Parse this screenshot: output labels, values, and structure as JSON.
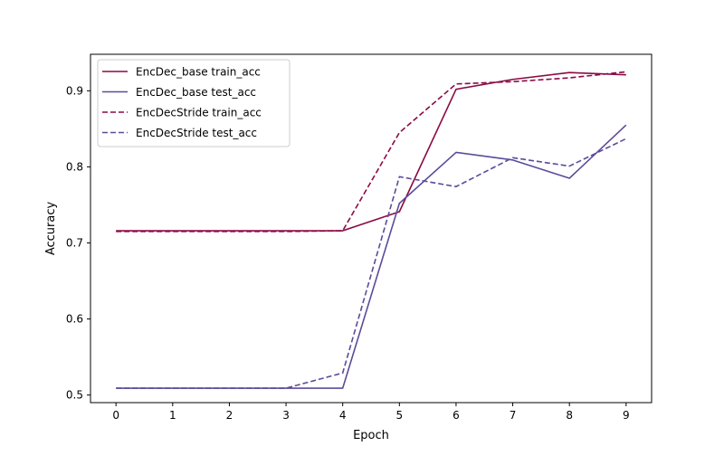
{
  "chart_data": {
    "type": "line",
    "title": "",
    "xlabel": "Epoch",
    "ylabel": "Accuracy",
    "x": [
      0,
      1,
      2,
      3,
      4,
      5,
      6,
      7,
      8,
      9
    ],
    "xticks": [
      "0",
      "1",
      "2",
      "3",
      "4",
      "5",
      "6",
      "7",
      "8",
      "9"
    ],
    "yticks": [
      "0.5",
      "0.6",
      "0.7",
      "0.8",
      "0.9"
    ],
    "ytick_values": [
      0.5,
      0.6,
      0.7,
      0.8,
      0.9
    ],
    "xlim": [
      -0.45,
      9.45
    ],
    "ylim": [
      0.49,
      0.948
    ],
    "grid": false,
    "legend_position": "top-left",
    "series": [
      {
        "name": "EncDec_base train_acc",
        "color": "#8b0a45",
        "style": "solid",
        "values": [
          0.716,
          0.716,
          0.716,
          0.716,
          0.716,
          0.741,
          0.902,
          0.915,
          0.924,
          0.921
        ]
      },
      {
        "name": "EncDec_base test_acc",
        "color": "#5c4b9a",
        "style": "solid",
        "values": [
          0.509,
          0.509,
          0.509,
          0.509,
          0.509,
          0.752,
          0.819,
          0.809,
          0.785,
          0.855
        ]
      },
      {
        "name": "EncDecStride train_acc",
        "color": "#8b0a45",
        "style": "dashed",
        "values": [
          0.715,
          0.715,
          0.715,
          0.715,
          0.716,
          0.845,
          0.909,
          0.912,
          0.917,
          0.925
        ]
      },
      {
        "name": "EncDecStride test_acc",
        "color": "#5c4b9a",
        "style": "dashed",
        "values": [
          0.509,
          0.509,
          0.509,
          0.509,
          0.529,
          0.787,
          0.774,
          0.812,
          0.801,
          0.837
        ]
      }
    ]
  }
}
